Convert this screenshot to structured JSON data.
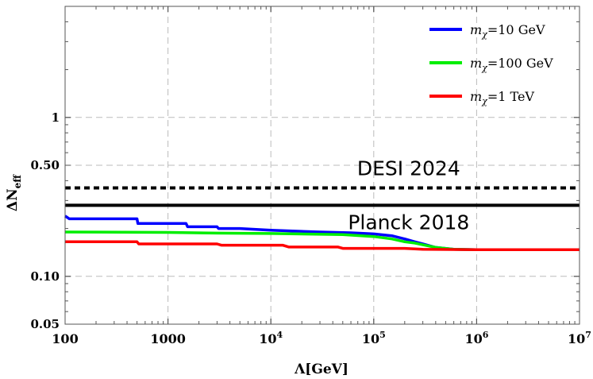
{
  "chart_data": {
    "type": "line",
    "x_scale": "log",
    "y_scale": "log",
    "xlim": [
      100,
      10000000
    ],
    "ylim": [
      0.05,
      5
    ],
    "grid": true,
    "xlabel": "Λ[GeV]",
    "ylabel": "ΔN",
    "ylabel_sub": "eff",
    "x_ticks": [
      {
        "value": 100,
        "base": "100",
        "exp": ""
      },
      {
        "value": 1000,
        "base": "1000",
        "exp": ""
      },
      {
        "value": 10000,
        "base": "10",
        "exp": "4"
      },
      {
        "value": 100000,
        "base": "10",
        "exp": "5"
      },
      {
        "value": 1000000,
        "base": "10",
        "exp": "6"
      },
      {
        "value": 10000000,
        "base": "10",
        "exp": "7"
      }
    ],
    "y_ticks": [
      {
        "value": 0.05,
        "label": "0.05"
      },
      {
        "value": 0.1,
        "label": "0.10"
      },
      {
        "value": 0.5,
        "label": "0.50"
      },
      {
        "value": 1,
        "label": "1"
      }
    ],
    "legend_position": "top-right",
    "series": [
      {
        "name": "m",
        "name_sub": "χ",
        "name_rest": "=10 GeV",
        "color": "#0000ff",
        "points": [
          [
            100,
            0.24
          ],
          [
            110,
            0.23
          ],
          [
            500,
            0.23
          ],
          [
            510,
            0.215
          ],
          [
            1500,
            0.215
          ],
          [
            1550,
            0.205
          ],
          [
            3000,
            0.205
          ],
          [
            3100,
            0.2
          ],
          [
            5000,
            0.2
          ],
          [
            10000,
            0.195
          ],
          [
            30000,
            0.19
          ],
          [
            60000,
            0.188
          ],
          [
            100000,
            0.185
          ],
          [
            150000,
            0.18
          ],
          [
            200000,
            0.172
          ],
          [
            250000,
            0.165
          ],
          [
            300000,
            0.16
          ],
          [
            400000,
            0.152
          ],
          [
            600000,
            0.148
          ],
          [
            1000000,
            0.147
          ],
          [
            10000000,
            0.147
          ]
        ]
      },
      {
        "name": "m",
        "name_sub": "χ",
        "name_rest": "=100 GeV",
        "color": "#00ee00",
        "points": [
          [
            100,
            0.19
          ],
          [
            1000,
            0.189
          ],
          [
            3000,
            0.187
          ],
          [
            10000,
            0.186
          ],
          [
            50000,
            0.183
          ],
          [
            100000,
            0.178
          ],
          [
            150000,
            0.172
          ],
          [
            200000,
            0.165
          ],
          [
            250000,
            0.162
          ],
          [
            300000,
            0.158
          ],
          [
            400000,
            0.152
          ],
          [
            600000,
            0.148
          ],
          [
            1000000,
            0.147
          ],
          [
            10000000,
            0.147
          ]
        ]
      },
      {
        "name": "m",
        "name_sub": "χ",
        "name_rest": "=1 TeV",
        "color": "#ff0000",
        "points": [
          [
            100,
            0.165
          ],
          [
            500,
            0.165
          ],
          [
            520,
            0.16
          ],
          [
            3000,
            0.16
          ],
          [
            3300,
            0.157
          ],
          [
            13000,
            0.157
          ],
          [
            15000,
            0.153
          ],
          [
            45000,
            0.153
          ],
          [
            50000,
            0.15
          ],
          [
            200000,
            0.15
          ],
          [
            300000,
            0.148
          ],
          [
            1000000,
            0.147
          ],
          [
            10000000,
            0.147
          ]
        ]
      }
    ],
    "reference_lines": [
      {
        "label": "DESI 2024",
        "y": 0.36,
        "style": "dashed",
        "color": "#000000",
        "label_x": 200000,
        "label_y": 0.48
      },
      {
        "label": "Planck 2018",
        "y": 0.28,
        "style": "solid",
        "color": "#000000",
        "label_x": 200000,
        "label_y": 0.22
      }
    ]
  }
}
